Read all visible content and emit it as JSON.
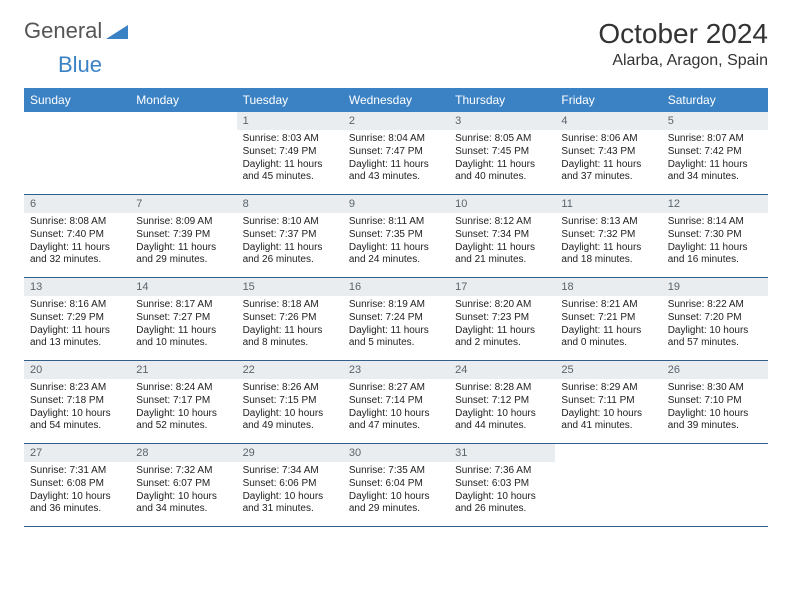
{
  "logo": {
    "part1": "General",
    "part2": "Blue"
  },
  "title": "October 2024",
  "location": "Alarba, Aragon, Spain",
  "colors": {
    "header_bg": "#3b82c4",
    "daynum_bg": "#e9edf0",
    "rule": "#2f5f8a"
  },
  "dow": [
    "Sunday",
    "Monday",
    "Tuesday",
    "Wednesday",
    "Thursday",
    "Friday",
    "Saturday"
  ],
  "weeks": [
    [
      null,
      null,
      {
        "n": "1",
        "sr": "Sunrise: 8:03 AM",
        "ss": "Sunset: 7:49 PM",
        "dl": "Daylight: 11 hours and 45 minutes."
      },
      {
        "n": "2",
        "sr": "Sunrise: 8:04 AM",
        "ss": "Sunset: 7:47 PM",
        "dl": "Daylight: 11 hours and 43 minutes."
      },
      {
        "n": "3",
        "sr": "Sunrise: 8:05 AM",
        "ss": "Sunset: 7:45 PM",
        "dl": "Daylight: 11 hours and 40 minutes."
      },
      {
        "n": "4",
        "sr": "Sunrise: 8:06 AM",
        "ss": "Sunset: 7:43 PM",
        "dl": "Daylight: 11 hours and 37 minutes."
      },
      {
        "n": "5",
        "sr": "Sunrise: 8:07 AM",
        "ss": "Sunset: 7:42 PM",
        "dl": "Daylight: 11 hours and 34 minutes."
      }
    ],
    [
      {
        "n": "6",
        "sr": "Sunrise: 8:08 AM",
        "ss": "Sunset: 7:40 PM",
        "dl": "Daylight: 11 hours and 32 minutes."
      },
      {
        "n": "7",
        "sr": "Sunrise: 8:09 AM",
        "ss": "Sunset: 7:39 PM",
        "dl": "Daylight: 11 hours and 29 minutes."
      },
      {
        "n": "8",
        "sr": "Sunrise: 8:10 AM",
        "ss": "Sunset: 7:37 PM",
        "dl": "Daylight: 11 hours and 26 minutes."
      },
      {
        "n": "9",
        "sr": "Sunrise: 8:11 AM",
        "ss": "Sunset: 7:35 PM",
        "dl": "Daylight: 11 hours and 24 minutes."
      },
      {
        "n": "10",
        "sr": "Sunrise: 8:12 AM",
        "ss": "Sunset: 7:34 PM",
        "dl": "Daylight: 11 hours and 21 minutes."
      },
      {
        "n": "11",
        "sr": "Sunrise: 8:13 AM",
        "ss": "Sunset: 7:32 PM",
        "dl": "Daylight: 11 hours and 18 minutes."
      },
      {
        "n": "12",
        "sr": "Sunrise: 8:14 AM",
        "ss": "Sunset: 7:30 PM",
        "dl": "Daylight: 11 hours and 16 minutes."
      }
    ],
    [
      {
        "n": "13",
        "sr": "Sunrise: 8:16 AM",
        "ss": "Sunset: 7:29 PM",
        "dl": "Daylight: 11 hours and 13 minutes."
      },
      {
        "n": "14",
        "sr": "Sunrise: 8:17 AM",
        "ss": "Sunset: 7:27 PM",
        "dl": "Daylight: 11 hours and 10 minutes."
      },
      {
        "n": "15",
        "sr": "Sunrise: 8:18 AM",
        "ss": "Sunset: 7:26 PM",
        "dl": "Daylight: 11 hours and 8 minutes."
      },
      {
        "n": "16",
        "sr": "Sunrise: 8:19 AM",
        "ss": "Sunset: 7:24 PM",
        "dl": "Daylight: 11 hours and 5 minutes."
      },
      {
        "n": "17",
        "sr": "Sunrise: 8:20 AM",
        "ss": "Sunset: 7:23 PM",
        "dl": "Daylight: 11 hours and 2 minutes."
      },
      {
        "n": "18",
        "sr": "Sunrise: 8:21 AM",
        "ss": "Sunset: 7:21 PM",
        "dl": "Daylight: 11 hours and 0 minutes."
      },
      {
        "n": "19",
        "sr": "Sunrise: 8:22 AM",
        "ss": "Sunset: 7:20 PM",
        "dl": "Daylight: 10 hours and 57 minutes."
      }
    ],
    [
      {
        "n": "20",
        "sr": "Sunrise: 8:23 AM",
        "ss": "Sunset: 7:18 PM",
        "dl": "Daylight: 10 hours and 54 minutes."
      },
      {
        "n": "21",
        "sr": "Sunrise: 8:24 AM",
        "ss": "Sunset: 7:17 PM",
        "dl": "Daylight: 10 hours and 52 minutes."
      },
      {
        "n": "22",
        "sr": "Sunrise: 8:26 AM",
        "ss": "Sunset: 7:15 PM",
        "dl": "Daylight: 10 hours and 49 minutes."
      },
      {
        "n": "23",
        "sr": "Sunrise: 8:27 AM",
        "ss": "Sunset: 7:14 PM",
        "dl": "Daylight: 10 hours and 47 minutes."
      },
      {
        "n": "24",
        "sr": "Sunrise: 8:28 AM",
        "ss": "Sunset: 7:12 PM",
        "dl": "Daylight: 10 hours and 44 minutes."
      },
      {
        "n": "25",
        "sr": "Sunrise: 8:29 AM",
        "ss": "Sunset: 7:11 PM",
        "dl": "Daylight: 10 hours and 41 minutes."
      },
      {
        "n": "26",
        "sr": "Sunrise: 8:30 AM",
        "ss": "Sunset: 7:10 PM",
        "dl": "Daylight: 10 hours and 39 minutes."
      }
    ],
    [
      {
        "n": "27",
        "sr": "Sunrise: 7:31 AM",
        "ss": "Sunset: 6:08 PM",
        "dl": "Daylight: 10 hours and 36 minutes."
      },
      {
        "n": "28",
        "sr": "Sunrise: 7:32 AM",
        "ss": "Sunset: 6:07 PM",
        "dl": "Daylight: 10 hours and 34 minutes."
      },
      {
        "n": "29",
        "sr": "Sunrise: 7:34 AM",
        "ss": "Sunset: 6:06 PM",
        "dl": "Daylight: 10 hours and 31 minutes."
      },
      {
        "n": "30",
        "sr": "Sunrise: 7:35 AM",
        "ss": "Sunset: 6:04 PM",
        "dl": "Daylight: 10 hours and 29 minutes."
      },
      {
        "n": "31",
        "sr": "Sunrise: 7:36 AM",
        "ss": "Sunset: 6:03 PM",
        "dl": "Daylight: 10 hours and 26 minutes."
      },
      null,
      null
    ]
  ]
}
